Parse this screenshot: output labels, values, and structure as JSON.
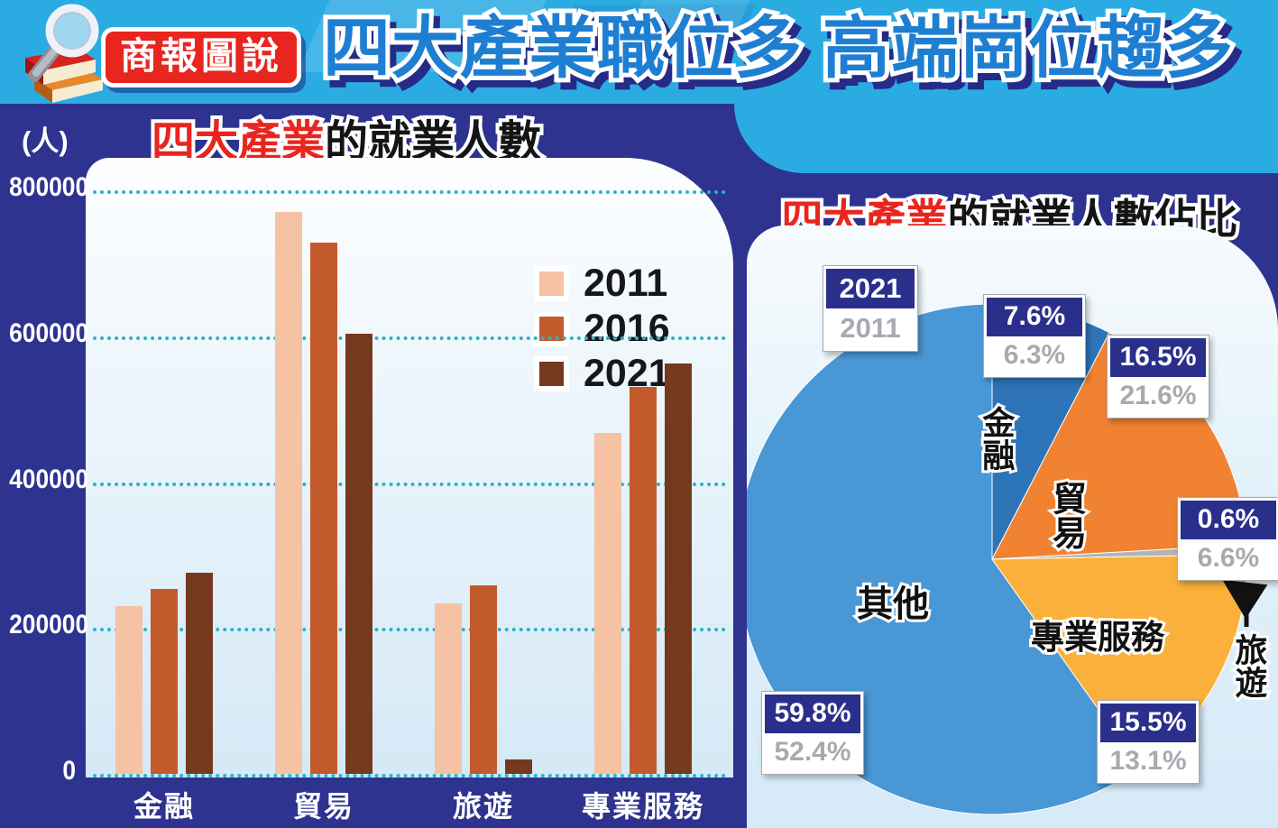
{
  "banner": {
    "badge_label": "商報圖說",
    "title": "四大產業職位多 高端崗位趨多"
  },
  "palette": {
    "banner_bg": "#2AACE3",
    "title_blue": "#1E7FD2",
    "badge_red": "#E8251F",
    "panel_navy": "#2E3390",
    "grid_teal": "#2BB2C9",
    "box_navy": "#2B2F8C",
    "box_gray_text": "#A7AAAF"
  },
  "chart_data": [
    {
      "type": "bar",
      "title_highlight": "四大產業",
      "title_rest": "的就業人數",
      "unit_label": "(人)",
      "categories": [
        "金融",
        "貿易",
        "旅遊",
        "專業服務"
      ],
      "category_slugs": [
        "finance",
        "trade",
        "tourism",
        "professional-services"
      ],
      "series": [
        {
          "name": "2011",
          "color": "#F5C3A3",
          "values": [
            230000,
            770000,
            234000,
            468000
          ]
        },
        {
          "name": "2016",
          "color": "#C25A2B",
          "values": [
            253000,
            728000,
            258000,
            530000
          ]
        },
        {
          "name": "2021",
          "color": "#75391F",
          "values": [
            276000,
            604000,
            20000,
            563000
          ]
        }
      ],
      "ylim": [
        0,
        800000
      ],
      "yticks": [
        800000,
        600000,
        400000,
        200000,
        0
      ],
      "ytick_labels": [
        "800000",
        "600000",
        "400000",
        "200000",
        "0"
      ],
      "grid": "dotted-horizontal",
      "legend_position": "top-right-inside"
    },
    {
      "type": "pie",
      "title_highlight": "四大產業",
      "title_rest": "的就業人數佔比",
      "legend": {
        "primary": "2021",
        "secondary": "2011"
      },
      "slices": [
        {
          "label": "金融",
          "slug": "finance",
          "pct_2021": 7.6,
          "pct_2011": 6.3,
          "color": "#2E74B8"
        },
        {
          "label": "貿易",
          "slug": "trade",
          "pct_2021": 16.5,
          "pct_2011": 21.6,
          "color": "#F08232"
        },
        {
          "label": "旅遊",
          "slug": "tourism",
          "pct_2021": 0.6,
          "pct_2011": 6.6,
          "color": "#B3B3B3"
        },
        {
          "label": "專業服務",
          "slug": "professional-services",
          "pct_2021": 15.5,
          "pct_2011": 13.1,
          "color": "#FBB03B"
        },
        {
          "label": "其他",
          "slug": "other",
          "pct_2021": 59.8,
          "pct_2011": 52.4,
          "color": "#4A97D6"
        }
      ],
      "start_angle_deg": 0,
      "direction": "clockwise"
    }
  ]
}
